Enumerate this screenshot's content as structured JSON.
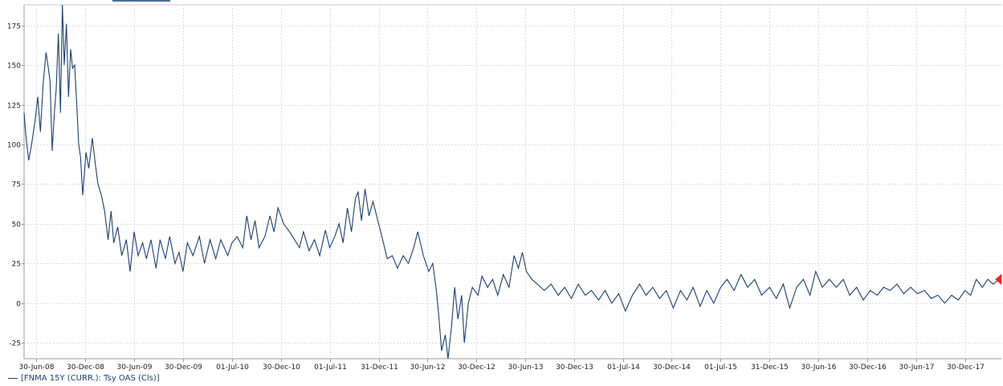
{
  "chart_data": {
    "type": "line",
    "title": "",
    "xlabel": "",
    "ylabel": "",
    "ylim": [
      -35,
      188
    ],
    "xlim": [
      "2008-05-15",
      "2018-05-15"
    ],
    "grid": true,
    "legend_position": "bottom-left",
    "y_ticks": [
      175,
      150,
      125,
      100,
      75,
      50,
      25,
      0,
      -25
    ],
    "x_ticks": [
      {
        "date": "2008-06-30",
        "label": "30-Jun-08"
      },
      {
        "date": "2008-12-30",
        "label": "30-Dec-08"
      },
      {
        "date": "2009-06-30",
        "label": "30-Jun-09"
      },
      {
        "date": "2009-12-30",
        "label": "30-Dec-09"
      },
      {
        "date": "2010-07-01",
        "label": "01-Jul-10"
      },
      {
        "date": "2010-12-30",
        "label": "30-Dec-10"
      },
      {
        "date": "2011-07-01",
        "label": "01-Jul-11"
      },
      {
        "date": "2011-12-31",
        "label": "31-Dec-11"
      },
      {
        "date": "2012-06-30",
        "label": "30-Jun-12"
      },
      {
        "date": "2012-12-30",
        "label": "30-Dec-12"
      },
      {
        "date": "2013-06-30",
        "label": "30-Jun-13"
      },
      {
        "date": "2013-12-30",
        "label": "30-Dec-13"
      },
      {
        "date": "2014-07-01",
        "label": "01-Jul-14"
      },
      {
        "date": "2014-12-30",
        "label": "30-Dec-14"
      },
      {
        "date": "2015-07-01",
        "label": "01-Jul-15"
      },
      {
        "date": "2015-12-31",
        "label": "31-Dec-15"
      },
      {
        "date": "2016-06-30",
        "label": "30-Jun-16"
      },
      {
        "date": "2016-12-30",
        "label": "30-Dec-16"
      },
      {
        "date": "2017-06-30",
        "label": "30-Jun-17"
      },
      {
        "date": "2017-12-30",
        "label": "30-Dec-17"
      }
    ],
    "series": [
      {
        "name": "[FNMA 15Y (CURR.): Tsy OAS (Cls)]",
        "color": "#1b3e6e",
        "points": [
          [
            "2008-05-15",
            120
          ],
          [
            "2008-05-22",
            105
          ],
          [
            "2008-06-01",
            90
          ],
          [
            "2008-06-12",
            100
          ],
          [
            "2008-06-25",
            115
          ],
          [
            "2008-07-05",
            130
          ],
          [
            "2008-07-15",
            108
          ],
          [
            "2008-07-25",
            138
          ],
          [
            "2008-08-05",
            158
          ],
          [
            "2008-08-12",
            150
          ],
          [
            "2008-08-20",
            140
          ],
          [
            "2008-08-28",
            96
          ],
          [
            "2008-09-05",
            120
          ],
          [
            "2008-09-12",
            135
          ],
          [
            "2008-09-20",
            170
          ],
          [
            "2008-09-28",
            120
          ],
          [
            "2008-10-05",
            188
          ],
          [
            "2008-10-12",
            150
          ],
          [
            "2008-10-20",
            176
          ],
          [
            "2008-10-28",
            130
          ],
          [
            "2008-11-05",
            160
          ],
          [
            "2008-11-12",
            148
          ],
          [
            "2008-11-20",
            150
          ],
          [
            "2008-11-28",
            125
          ],
          [
            "2008-12-05",
            100
          ],
          [
            "2008-12-12",
            92
          ],
          [
            "2008-12-20",
            68
          ],
          [
            "2009-01-01",
            95
          ],
          [
            "2009-01-12",
            85
          ],
          [
            "2009-01-25",
            104
          ],
          [
            "2009-02-05",
            88
          ],
          [
            "2009-02-15",
            75
          ],
          [
            "2009-02-28",
            68
          ],
          [
            "2009-03-12",
            58
          ],
          [
            "2009-03-25",
            40
          ],
          [
            "2009-04-05",
            58
          ],
          [
            "2009-04-15",
            38
          ],
          [
            "2009-04-30",
            48
          ],
          [
            "2009-05-15",
            30
          ],
          [
            "2009-06-01",
            40
          ],
          [
            "2009-06-15",
            20
          ],
          [
            "2009-06-30",
            45
          ],
          [
            "2009-07-15",
            30
          ],
          [
            "2009-08-01",
            38
          ],
          [
            "2009-08-15",
            28
          ],
          [
            "2009-09-01",
            40
          ],
          [
            "2009-09-20",
            22
          ],
          [
            "2009-10-05",
            40
          ],
          [
            "2009-10-25",
            28
          ],
          [
            "2009-11-10",
            42
          ],
          [
            "2009-11-30",
            25
          ],
          [
            "2009-12-15",
            32
          ],
          [
            "2009-12-30",
            20
          ],
          [
            "2010-01-15",
            38
          ],
          [
            "2010-02-05",
            30
          ],
          [
            "2010-03-01",
            42
          ],
          [
            "2010-03-20",
            25
          ],
          [
            "2010-04-10",
            40
          ],
          [
            "2010-05-01",
            28
          ],
          [
            "2010-05-20",
            40
          ],
          [
            "2010-06-15",
            30
          ],
          [
            "2010-07-01",
            38
          ],
          [
            "2010-07-20",
            42
          ],
          [
            "2010-08-10",
            35
          ],
          [
            "2010-08-25",
            55
          ],
          [
            "2010-09-10",
            40
          ],
          [
            "2010-09-25",
            52
          ],
          [
            "2010-10-10",
            35
          ],
          [
            "2010-11-01",
            42
          ],
          [
            "2010-11-20",
            55
          ],
          [
            "2010-12-05",
            45
          ],
          [
            "2010-12-20",
            60
          ],
          [
            "2011-01-10",
            50
          ],
          [
            "2011-02-01",
            45
          ],
          [
            "2011-02-20",
            40
          ],
          [
            "2011-03-10",
            35
          ],
          [
            "2011-03-25",
            45
          ],
          [
            "2011-04-15",
            33
          ],
          [
            "2011-05-05",
            40
          ],
          [
            "2011-05-25",
            30
          ],
          [
            "2011-06-15",
            46
          ],
          [
            "2011-07-01",
            35
          ],
          [
            "2011-07-20",
            42
          ],
          [
            "2011-08-05",
            50
          ],
          [
            "2011-08-20",
            38
          ],
          [
            "2011-09-05",
            60
          ],
          [
            "2011-09-20",
            45
          ],
          [
            "2011-10-05",
            66
          ],
          [
            "2011-10-15",
            70
          ],
          [
            "2011-10-28",
            52
          ],
          [
            "2011-11-10",
            72
          ],
          [
            "2011-11-25",
            55
          ],
          [
            "2011-12-10",
            64
          ],
          [
            "2011-12-31",
            50
          ],
          [
            "2012-01-15",
            40
          ],
          [
            "2012-02-01",
            28
          ],
          [
            "2012-02-20",
            30
          ],
          [
            "2012-03-10",
            22
          ],
          [
            "2012-04-01",
            30
          ],
          [
            "2012-04-20",
            25
          ],
          [
            "2012-05-10",
            35
          ],
          [
            "2012-05-25",
            45
          ],
          [
            "2012-06-15",
            30
          ],
          [
            "2012-07-05",
            20
          ],
          [
            "2012-07-20",
            25
          ],
          [
            "2012-08-01",
            10
          ],
          [
            "2012-08-10",
            -5
          ],
          [
            "2012-08-22",
            -30
          ],
          [
            "2012-09-05",
            -20
          ],
          [
            "2012-09-15",
            -35
          ],
          [
            "2012-09-28",
            -15
          ],
          [
            "2012-10-10",
            10
          ],
          [
            "2012-10-22",
            -10
          ],
          [
            "2012-11-05",
            5
          ],
          [
            "2012-11-15",
            -25
          ],
          [
            "2012-11-30",
            0
          ],
          [
            "2012-12-15",
            10
          ],
          [
            "2013-01-05",
            5
          ],
          [
            "2013-01-20",
            17
          ],
          [
            "2013-02-10",
            10
          ],
          [
            "2013-03-01",
            15
          ],
          [
            "2013-03-20",
            5
          ],
          [
            "2013-04-10",
            18
          ],
          [
            "2013-05-01",
            10
          ],
          [
            "2013-05-20",
            30
          ],
          [
            "2013-06-05",
            22
          ],
          [
            "2013-06-20",
            32
          ],
          [
            "2013-07-05",
            20
          ],
          [
            "2013-07-25",
            15
          ],
          [
            "2013-08-15",
            12
          ],
          [
            "2013-09-10",
            8
          ],
          [
            "2013-10-05",
            12
          ],
          [
            "2013-11-01",
            5
          ],
          [
            "2013-11-25",
            10
          ],
          [
            "2013-12-20",
            3
          ],
          [
            "2014-01-15",
            12
          ],
          [
            "2014-02-10",
            5
          ],
          [
            "2014-03-05",
            8
          ],
          [
            "2014-04-01",
            2
          ],
          [
            "2014-04-25",
            8
          ],
          [
            "2014-05-20",
            0
          ],
          [
            "2014-06-15",
            6
          ],
          [
            "2014-07-10",
            -5
          ],
          [
            "2014-08-05",
            5
          ],
          [
            "2014-09-01",
            12
          ],
          [
            "2014-09-25",
            5
          ],
          [
            "2014-10-20",
            10
          ],
          [
            "2014-11-15",
            3
          ],
          [
            "2014-12-10",
            8
          ],
          [
            "2015-01-05",
            -3
          ],
          [
            "2015-02-01",
            8
          ],
          [
            "2015-02-25",
            2
          ],
          [
            "2015-03-20",
            10
          ],
          [
            "2015-04-15",
            -2
          ],
          [
            "2015-05-10",
            8
          ],
          [
            "2015-06-05",
            0
          ],
          [
            "2015-07-01",
            10
          ],
          [
            "2015-07-25",
            15
          ],
          [
            "2015-08-20",
            8
          ],
          [
            "2015-09-15",
            18
          ],
          [
            "2015-10-10",
            10
          ],
          [
            "2015-11-05",
            15
          ],
          [
            "2015-12-01",
            5
          ],
          [
            "2015-12-31",
            10
          ],
          [
            "2016-01-25",
            3
          ],
          [
            "2016-02-20",
            12
          ],
          [
            "2016-03-15",
            -3
          ],
          [
            "2016-04-10",
            10
          ],
          [
            "2016-05-05",
            15
          ],
          [
            "2016-05-30",
            5
          ],
          [
            "2016-06-20",
            20
          ],
          [
            "2016-07-15",
            10
          ],
          [
            "2016-08-10",
            15
          ],
          [
            "2016-09-05",
            10
          ],
          [
            "2016-10-01",
            15
          ],
          [
            "2016-10-25",
            5
          ],
          [
            "2016-11-20",
            10
          ],
          [
            "2016-12-15",
            2
          ],
          [
            "2017-01-10",
            8
          ],
          [
            "2017-02-05",
            5
          ],
          [
            "2017-03-01",
            10
          ],
          [
            "2017-03-25",
            8
          ],
          [
            "2017-04-20",
            12
          ],
          [
            "2017-05-15",
            6
          ],
          [
            "2017-06-10",
            10
          ],
          [
            "2017-07-05",
            6
          ],
          [
            "2017-08-01",
            8
          ],
          [
            "2017-08-25",
            3
          ],
          [
            "2017-09-20",
            5
          ],
          [
            "2017-10-15",
            0
          ],
          [
            "2017-11-10",
            5
          ],
          [
            "2017-12-05",
            2
          ],
          [
            "2017-12-30",
            8
          ],
          [
            "2018-01-20",
            5
          ],
          [
            "2018-02-10",
            15
          ],
          [
            "2018-03-05",
            10
          ],
          [
            "2018-03-25",
            15
          ],
          [
            "2018-04-15",
            12
          ],
          [
            "2018-05-05",
            15
          ]
        ]
      }
    ],
    "marker": {
      "date": "2018-05-10",
      "value": 15,
      "shape": "arrow",
      "color": "#e5262a"
    }
  },
  "legend": {
    "label": "[FNMA 15Y (CURR.): Tsy OAS (Cls)]"
  }
}
